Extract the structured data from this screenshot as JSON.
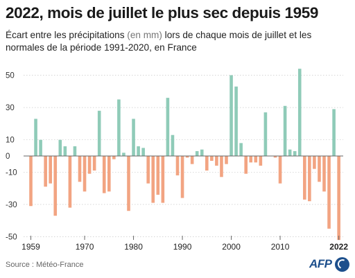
{
  "title": "2022, mois de juillet le plus sec depuis 1959",
  "subtitle_before": "Écart entre les précipitations ",
  "subtitle_unit": "(en mm)",
  "subtitle_after": " lors de chaque mois de juillet et les normales de la période 1991-2020, en France",
  "source": "Source : Météo-France",
  "logo_text": "AFP",
  "colors": {
    "positive": "#8fcbb8",
    "negative": "#f2a482",
    "axis": "#666666",
    "grid": "#c8c8c8"
  },
  "chart_data": {
    "type": "bar",
    "ylim": [
      -50,
      55
    ],
    "y_ticks": [
      -50,
      -30,
      -10,
      0,
      10,
      30,
      50
    ],
    "x_tick_labels": [
      "1959",
      "1970",
      "1980",
      "1990",
      "2000",
      "2010",
      "2022"
    ],
    "x_tick_positions": [
      1959,
      1970,
      1980,
      1990,
      2000,
      2010,
      2022
    ],
    "highlight_label": "2022",
    "categories": [
      1959,
      1960,
      1961,
      1962,
      1963,
      1964,
      1965,
      1966,
      1967,
      1968,
      1969,
      1970,
      1971,
      1972,
      1973,
      1974,
      1975,
      1976,
      1977,
      1978,
      1979,
      1980,
      1981,
      1982,
      1983,
      1984,
      1985,
      1986,
      1987,
      1988,
      1989,
      1990,
      1991,
      1992,
      1993,
      1994,
      1995,
      1996,
      1997,
      1998,
      1999,
      2000,
      2001,
      2002,
      2003,
      2004,
      2005,
      2006,
      2007,
      2008,
      2009,
      2010,
      2011,
      2012,
      2013,
      2014,
      2015,
      2016,
      2017,
      2018,
      2019,
      2020,
      2021,
      2022
    ],
    "values": [
      -31,
      23,
      10,
      -19,
      -17,
      -37,
      10,
      6,
      -32,
      6,
      -16,
      -22,
      -11,
      -9,
      28,
      -23,
      -22,
      -2,
      35,
      2,
      -34,
      23,
      6,
      5,
      -17,
      -29,
      -24,
      -29,
      36,
      13,
      -12,
      -26,
      -1,
      -5,
      3,
      4,
      -9,
      -3,
      -6,
      -13,
      -5,
      50,
      43,
      8,
      -11,
      -4,
      -4,
      -6,
      27,
      0,
      -1,
      -17,
      31,
      4,
      3,
      54,
      -27,
      -28,
      -8,
      -16,
      -22,
      -45,
      29,
      -52
    ]
  }
}
